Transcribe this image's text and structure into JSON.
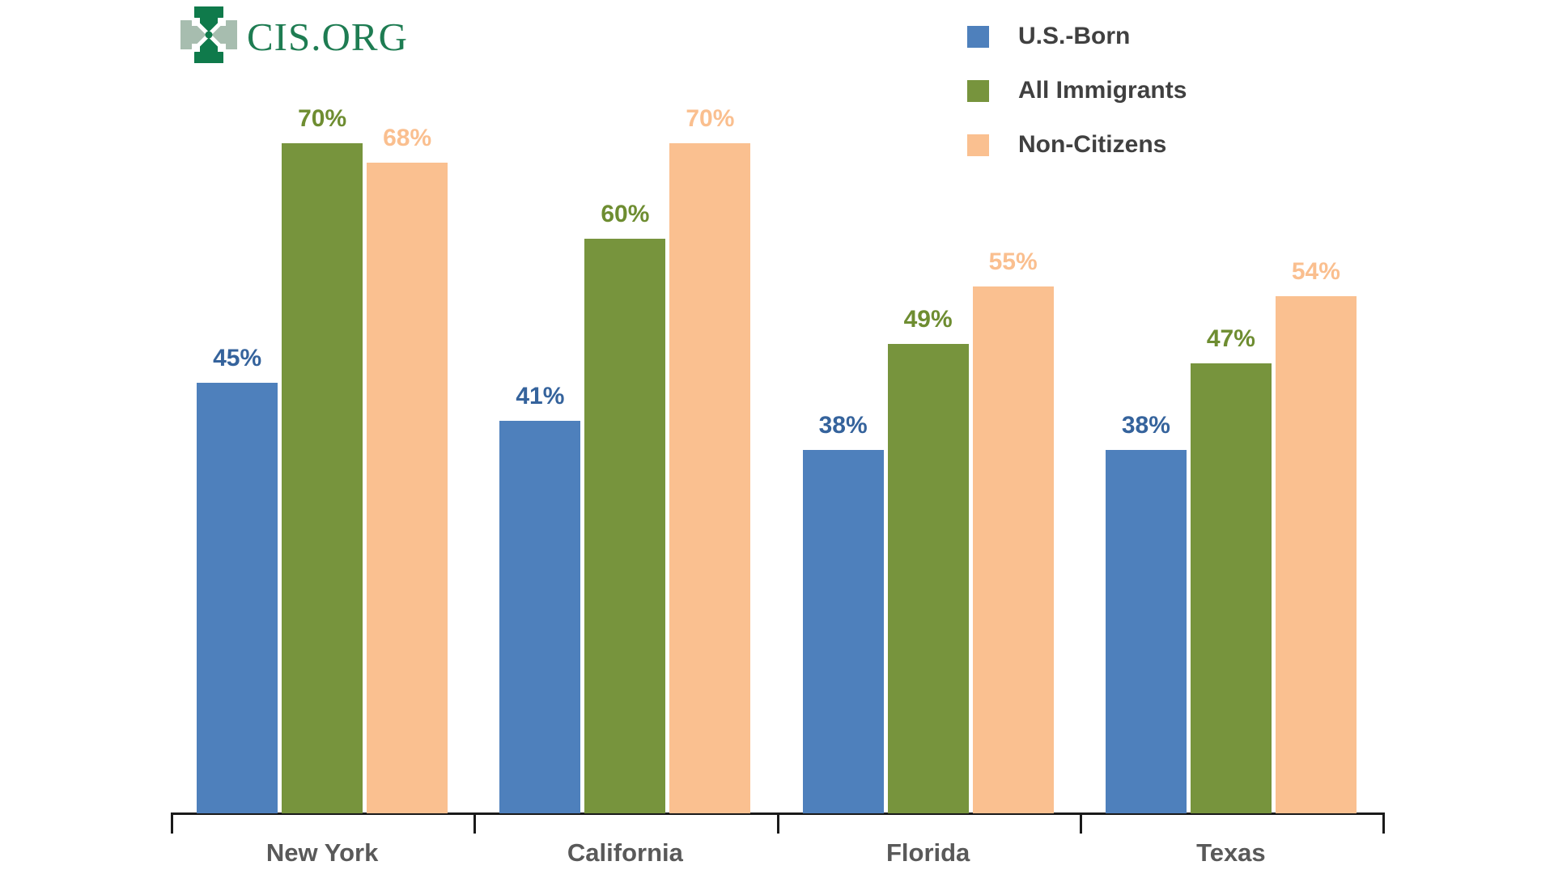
{
  "logo": {
    "text": "CIS.ORG",
    "icon": "cis-cross-logo"
  },
  "colors": {
    "background": "#FFFFFF",
    "axis": "#1A1A1A",
    "category_label": "#595959",
    "legend_text": "#404040",
    "logo_dark_green": "#0F7A4B",
    "logo_sage": "#A7BDAF",
    "logo_text_green": "#1E7C52"
  },
  "chart_data": {
    "type": "bar",
    "title": "",
    "xlabel": "",
    "ylabel": "",
    "categories": [
      "New York",
      "California",
      "Florida",
      "Texas"
    ],
    "series": [
      {
        "name": "U.S.-Born",
        "values": [
          45,
          41,
          38,
          38
        ],
        "bar_color": "#4E80BC",
        "label_color": "#35639C"
      },
      {
        "name": "All Immigrants",
        "values": [
          70,
          60,
          49,
          47
        ],
        "bar_color": "#77943D",
        "label_color": "#6E8D31"
      },
      {
        "name": "Non-Citizens",
        "values": [
          68,
          70,
          55,
          54
        ],
        "bar_color": "#FAC090",
        "label_color": "#FABF8F"
      }
    ],
    "value_suffix": "%",
    "ylim": [
      0,
      75
    ],
    "grid": false,
    "y_axis_visible": false,
    "legend_position": "top-right",
    "data_labels": true
  }
}
